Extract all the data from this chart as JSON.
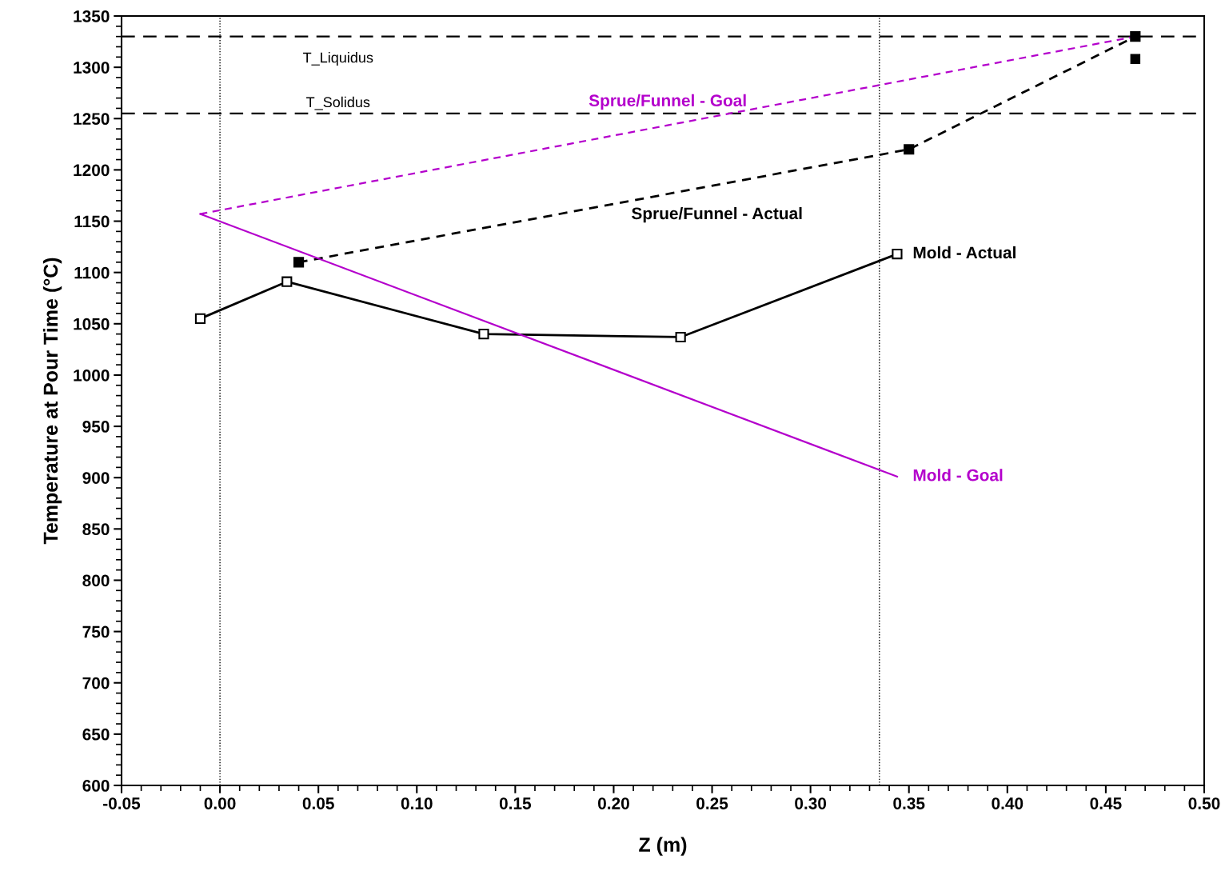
{
  "chart_data": {
    "type": "line",
    "xlabel": "Z (m)",
    "ylabel": "Temperature at Pour Time (°C)",
    "xlim": [
      -0.05,
      0.5
    ],
    "xticks": [
      {
        "value": -0.05,
        "label": "-0.05"
      },
      {
        "value": 0,
        "label": "0.00"
      },
      {
        "value": 0.05,
        "label": "0.05"
      },
      {
        "value": 0.1,
        "label": "0.10"
      },
      {
        "value": 0.15,
        "label": "0.15"
      },
      {
        "value": 0.2,
        "label": "0.20"
      },
      {
        "value": 0.25,
        "label": "0.25"
      },
      {
        "value": 0.3,
        "label": "0.30"
      },
      {
        "value": 0.35,
        "label": "0.35"
      },
      {
        "value": 0.4,
        "label": "0.40"
      },
      {
        "value": 0.45,
        "label": "0.45"
      },
      {
        "value": 0.5,
        "label": "0.50"
      }
    ],
    "ylim": [
      600,
      1350
    ],
    "yticks": [
      600,
      650,
      700,
      750,
      800,
      850,
      900,
      950,
      1000,
      1050,
      1100,
      1150,
      1200,
      1250,
      1300,
      1350
    ],
    "grid": false,
    "legend": false,
    "series": [
      {
        "name": "Sprue/Funnel - Goal",
        "color": "#b400cc",
        "line_style": "dashed",
        "marker": "none",
        "x": [
          -0.01,
          0.465
        ],
        "values": [
          1157,
          1330
        ]
      },
      {
        "name": "Sprue/Funnel - Actual",
        "color": "#000000",
        "line_style": "dashed",
        "marker": "square",
        "x": [
          0.04,
          0.35,
          0.465
        ],
        "values": [
          1110,
          1220,
          1330
        ]
      },
      {
        "name": "Mold - Actual",
        "color": "#000000",
        "line_style": "solid",
        "marker": "square",
        "x": [
          -0.01,
          0.034,
          0.134,
          0.234,
          0.344
        ],
        "values": [
          1055,
          1091,
          1040,
          1037,
          1118
        ]
      },
      {
        "name": "Mold - Goal",
        "color": "#b400cc",
        "line_style": "solid",
        "marker": "none",
        "x": [
          -0.01,
          0.344
        ],
        "values": [
          1157,
          901
        ]
      },
      {
        "type": "scatter",
        "color": "#000000",
        "marker": "square",
        "x": [
          0.465
        ],
        "values": [
          1308
        ]
      }
    ],
    "ref_lines": [
      {
        "axis": "y",
        "value": 1330,
        "label": "T_Liquidus",
        "color": "#000000",
        "line_style": "dashed"
      },
      {
        "axis": "y",
        "value": 1255,
        "label": "T_Solidus",
        "color": "#000000",
        "line_style": "dashed"
      },
      {
        "axis": "x",
        "value": 0,
        "color": "#000000",
        "line_style": "dotted"
      },
      {
        "axis": "x",
        "value": 0.335,
        "color": "#000000",
        "line_style": "dotted"
      }
    ]
  }
}
